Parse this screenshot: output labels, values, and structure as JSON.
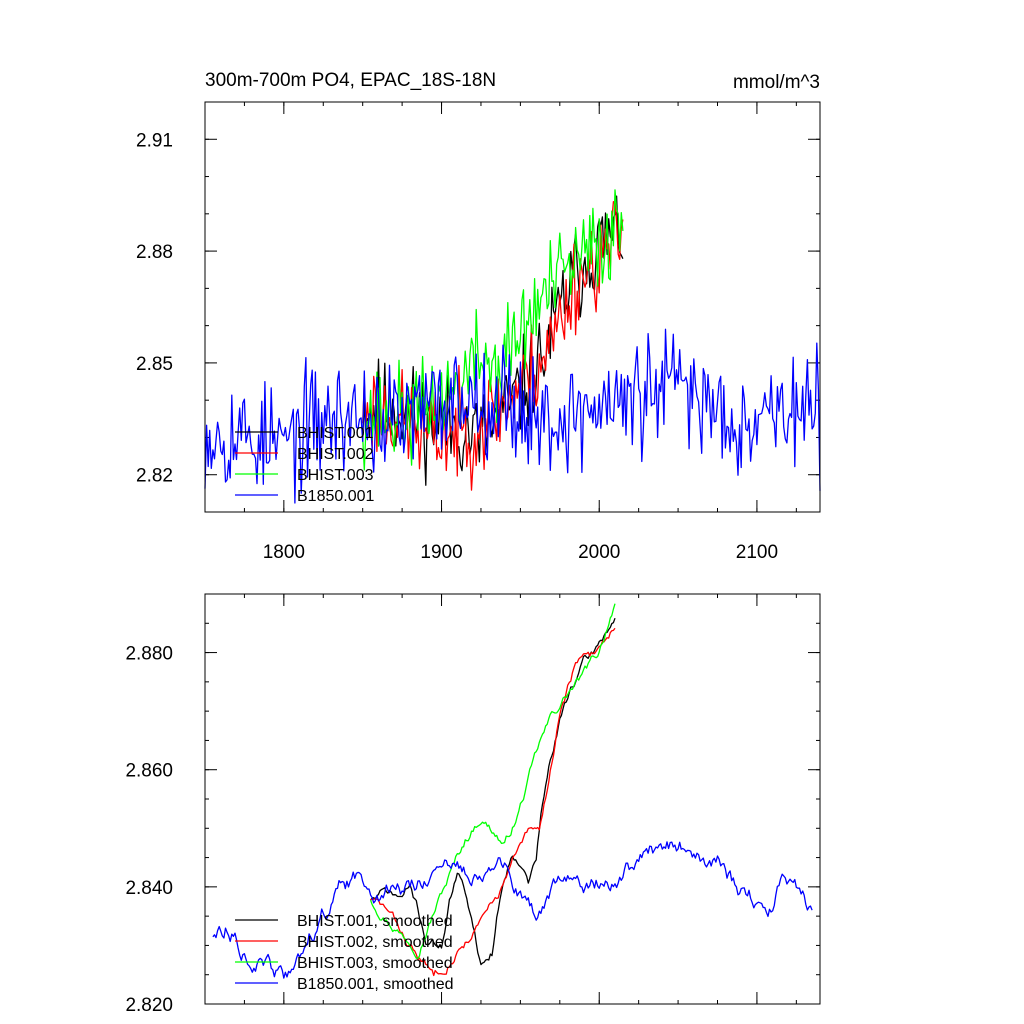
{
  "chart_data": [
    {
      "type": "line",
      "title": "300m-700m PO4, EPAC_18S-18N",
      "units": "mmol/m^3",
      "xlabel": "",
      "ylabel": "",
      "xlim": [
        1750,
        2140
      ],
      "ylim": [
        2.81,
        2.92
      ],
      "xticks": [
        1800,
        1900,
        2000,
        2100
      ],
      "xtick_labels": [
        "1800",
        "1900",
        "2000",
        "2100"
      ],
      "yticks": [
        2.82,
        2.85,
        2.88,
        2.91
      ],
      "ytick_labels": [
        "2.82",
        "2.85",
        "2.88",
        "2.91"
      ],
      "legend_position": "bottom-left",
      "series": [
        {
          "name": "BHIST.001",
          "color": "#000000",
          "start": 1850,
          "end": 2015,
          "anchors": [
            [
              1850,
              2.838
            ],
            [
              1870,
              2.838
            ],
            [
              1890,
              2.835
            ],
            [
              1910,
              2.833
            ],
            [
              1925,
              2.83
            ],
            [
              1935,
              2.834
            ],
            [
              1950,
              2.842
            ],
            [
              1965,
              2.852
            ],
            [
              1980,
              2.87
            ],
            [
              1995,
              2.88
            ],
            [
              2015,
              2.886
            ]
          ],
          "noise": 0.0065,
          "seed": 11
        },
        {
          "name": "BHIST.002",
          "color": "#ff0000",
          "start": 1850,
          "end": 2015,
          "anchors": [
            [
              1850,
              2.838
            ],
            [
              1870,
              2.836
            ],
            [
              1890,
              2.83
            ],
            [
              1910,
              2.831
            ],
            [
              1925,
              2.834
            ],
            [
              1940,
              2.839
            ],
            [
              1955,
              2.846
            ],
            [
              1970,
              2.856
            ],
            [
              1985,
              2.872
            ],
            [
              2000,
              2.878
            ],
            [
              2015,
              2.884
            ]
          ],
          "noise": 0.0065,
          "seed": 23
        },
        {
          "name": "BHIST.003",
          "color": "#00ff00",
          "start": 1850,
          "end": 2015,
          "anchors": [
            [
              1850,
              2.836
            ],
            [
              1870,
              2.836
            ],
            [
              1885,
              2.836
            ],
            [
              1895,
              2.84
            ],
            [
              1910,
              2.843
            ],
            [
              1925,
              2.852
            ],
            [
              1935,
              2.848
            ],
            [
              1950,
              2.858
            ],
            [
              1965,
              2.868
            ],
            [
              1980,
              2.875
            ],
            [
              1995,
              2.88
            ],
            [
              2015,
              2.888
            ]
          ],
          "noise": 0.0065,
          "seed": 37
        },
        {
          "name": "B1850.001",
          "color": "#0000ff",
          "start": 1750,
          "end": 2140,
          "anchors": [
            [
              1750,
              2.832
            ],
            [
              1770,
              2.831
            ],
            [
              1790,
              2.829
            ],
            [
              1800,
              2.828
            ],
            [
              1815,
              2.833
            ],
            [
              1830,
              2.835
            ],
            [
              1850,
              2.836
            ],
            [
              1870,
              2.834
            ],
            [
              1890,
              2.837
            ],
            [
              1910,
              2.841
            ],
            [
              1930,
              2.842
            ],
            [
              1950,
              2.838
            ],
            [
              1970,
              2.834
            ],
            [
              1990,
              2.837
            ],
            [
              2010,
              2.839
            ],
            [
              2030,
              2.841
            ],
            [
              2050,
              2.845
            ],
            [
              2070,
              2.839
            ],
            [
              2090,
              2.835
            ],
            [
              2110,
              2.838
            ],
            [
              2140,
              2.836
            ]
          ],
          "noise": 0.0075,
          "seed": 53
        }
      ]
    },
    {
      "type": "line",
      "title": "",
      "xlabel": "",
      "ylabel": "",
      "xlim": [
        1750,
        2140
      ],
      "ylim": [
        2.82,
        2.89
      ],
      "xticks": [
        1800,
        1900,
        2000,
        2100
      ],
      "yticks": [
        2.82,
        2.84,
        2.86,
        2.88
      ],
      "ytick_labels": [
        "2.820",
        "2.840",
        "2.860",
        "2.880"
      ],
      "legend_position": "bottom-left",
      "series": [
        {
          "name": "BHIST.001, smoothed",
          "color": "#000000",
          "start": 1855,
          "end": 2010,
          "anchors": [
            [
              1855,
              2.838
            ],
            [
              1865,
              2.839
            ],
            [
              1875,
              2.838
            ],
            [
              1880,
              2.84
            ],
            [
              1885,
              2.836
            ],
            [
              1890,
              2.831
            ],
            [
              1900,
              2.83
            ],
            [
              1905,
              2.838
            ],
            [
              1910,
              2.842
            ],
            [
              1915,
              2.839
            ],
            [
              1920,
              2.834
            ],
            [
              1925,
              2.827
            ],
            [
              1932,
              2.829
            ],
            [
              1938,
              2.84
            ],
            [
              1945,
              2.846
            ],
            [
              1950,
              2.845
            ],
            [
              1955,
              2.841
            ],
            [
              1960,
              2.845
            ],
            [
              1963,
              2.852
            ],
            [
              1968,
              2.86
            ],
            [
              1975,
              2.868
            ],
            [
              1982,
              2.874
            ],
            [
              1990,
              2.878
            ],
            [
              1997,
              2.88
            ],
            [
              2005,
              2.884
            ],
            [
              2010,
              2.886
            ]
          ],
          "noise": 0.0006,
          "seed": 71
        },
        {
          "name": "BHIST.002, smoothed",
          "color": "#ff0000",
          "start": 1855,
          "end": 2010,
          "anchors": [
            [
              1855,
              2.838
            ],
            [
              1865,
              2.836
            ],
            [
              1875,
              2.832
            ],
            [
              1885,
              2.828
            ],
            [
              1895,
              2.825
            ],
            [
              1905,
              2.828
            ],
            [
              1915,
              2.831
            ],
            [
              1925,
              2.834
            ],
            [
              1935,
              2.838
            ],
            [
              1945,
              2.844
            ],
            [
              1955,
              2.849
            ],
            [
              1962,
              2.849
            ],
            [
              1968,
              2.858
            ],
            [
              1975,
              2.87
            ],
            [
              1985,
              2.878
            ],
            [
              1995,
              2.879
            ],
            [
              2005,
              2.883
            ],
            [
              2010,
              2.885
            ]
          ],
          "noise": 0.0006,
          "seed": 83
        },
        {
          "name": "BHIST.003, smoothed",
          "color": "#00ff00",
          "start": 1855,
          "end": 2010,
          "anchors": [
            [
              1855,
              2.838
            ],
            [
              1865,
              2.835
            ],
            [
              1875,
              2.832
            ],
            [
              1885,
              2.83
            ],
            [
              1895,
              2.836
            ],
            [
              1905,
              2.842
            ],
            [
              1915,
              2.848
            ],
            [
              1925,
              2.852
            ],
            [
              1935,
              2.849
            ],
            [
              1940,
              2.847
            ],
            [
              1948,
              2.852
            ],
            [
              1955,
              2.858
            ],
            [
              1962,
              2.864
            ],
            [
              1970,
              2.869
            ],
            [
              1980,
              2.873
            ],
            [
              1990,
              2.876
            ],
            [
              2000,
              2.88
            ],
            [
              2010,
              2.889
            ]
          ],
          "noise": 0.0006,
          "seed": 97
        },
        {
          "name": "B1850.001, smoothed",
          "color": "#0000ff",
          "start": 1755,
          "end": 2135,
          "anchors": [
            [
              1755,
              2.832
            ],
            [
              1765,
              2.834
            ],
            [
              1775,
              2.83
            ],
            [
              1785,
              2.827
            ],
            [
              1795,
              2.825
            ],
            [
              1805,
              2.824
            ],
            [
              1815,
              2.831
            ],
            [
              1825,
              2.836
            ],
            [
              1835,
              2.839
            ],
            [
              1850,
              2.841
            ],
            [
              1865,
              2.84
            ],
            [
              1880,
              2.84
            ],
            [
              1895,
              2.843
            ],
            [
              1910,
              2.842
            ],
            [
              1925,
              2.844
            ],
            [
              1940,
              2.843
            ],
            [
              1950,
              2.838
            ],
            [
              1960,
              2.834
            ],
            [
              1975,
              2.841
            ],
            [
              1990,
              2.84
            ],
            [
              2005,
              2.842
            ],
            [
              2020,
              2.843
            ],
            [
              2035,
              2.846
            ],
            [
              2050,
              2.847
            ],
            [
              2065,
              2.845
            ],
            [
              2075,
              2.844
            ],
            [
              2085,
              2.84
            ],
            [
              2095,
              2.838
            ],
            [
              2105,
              2.835
            ],
            [
              2115,
              2.84
            ],
            [
              2125,
              2.838
            ],
            [
              2135,
              2.836
            ]
          ],
          "noise": 0.0012,
          "seed": 113
        }
      ]
    }
  ]
}
